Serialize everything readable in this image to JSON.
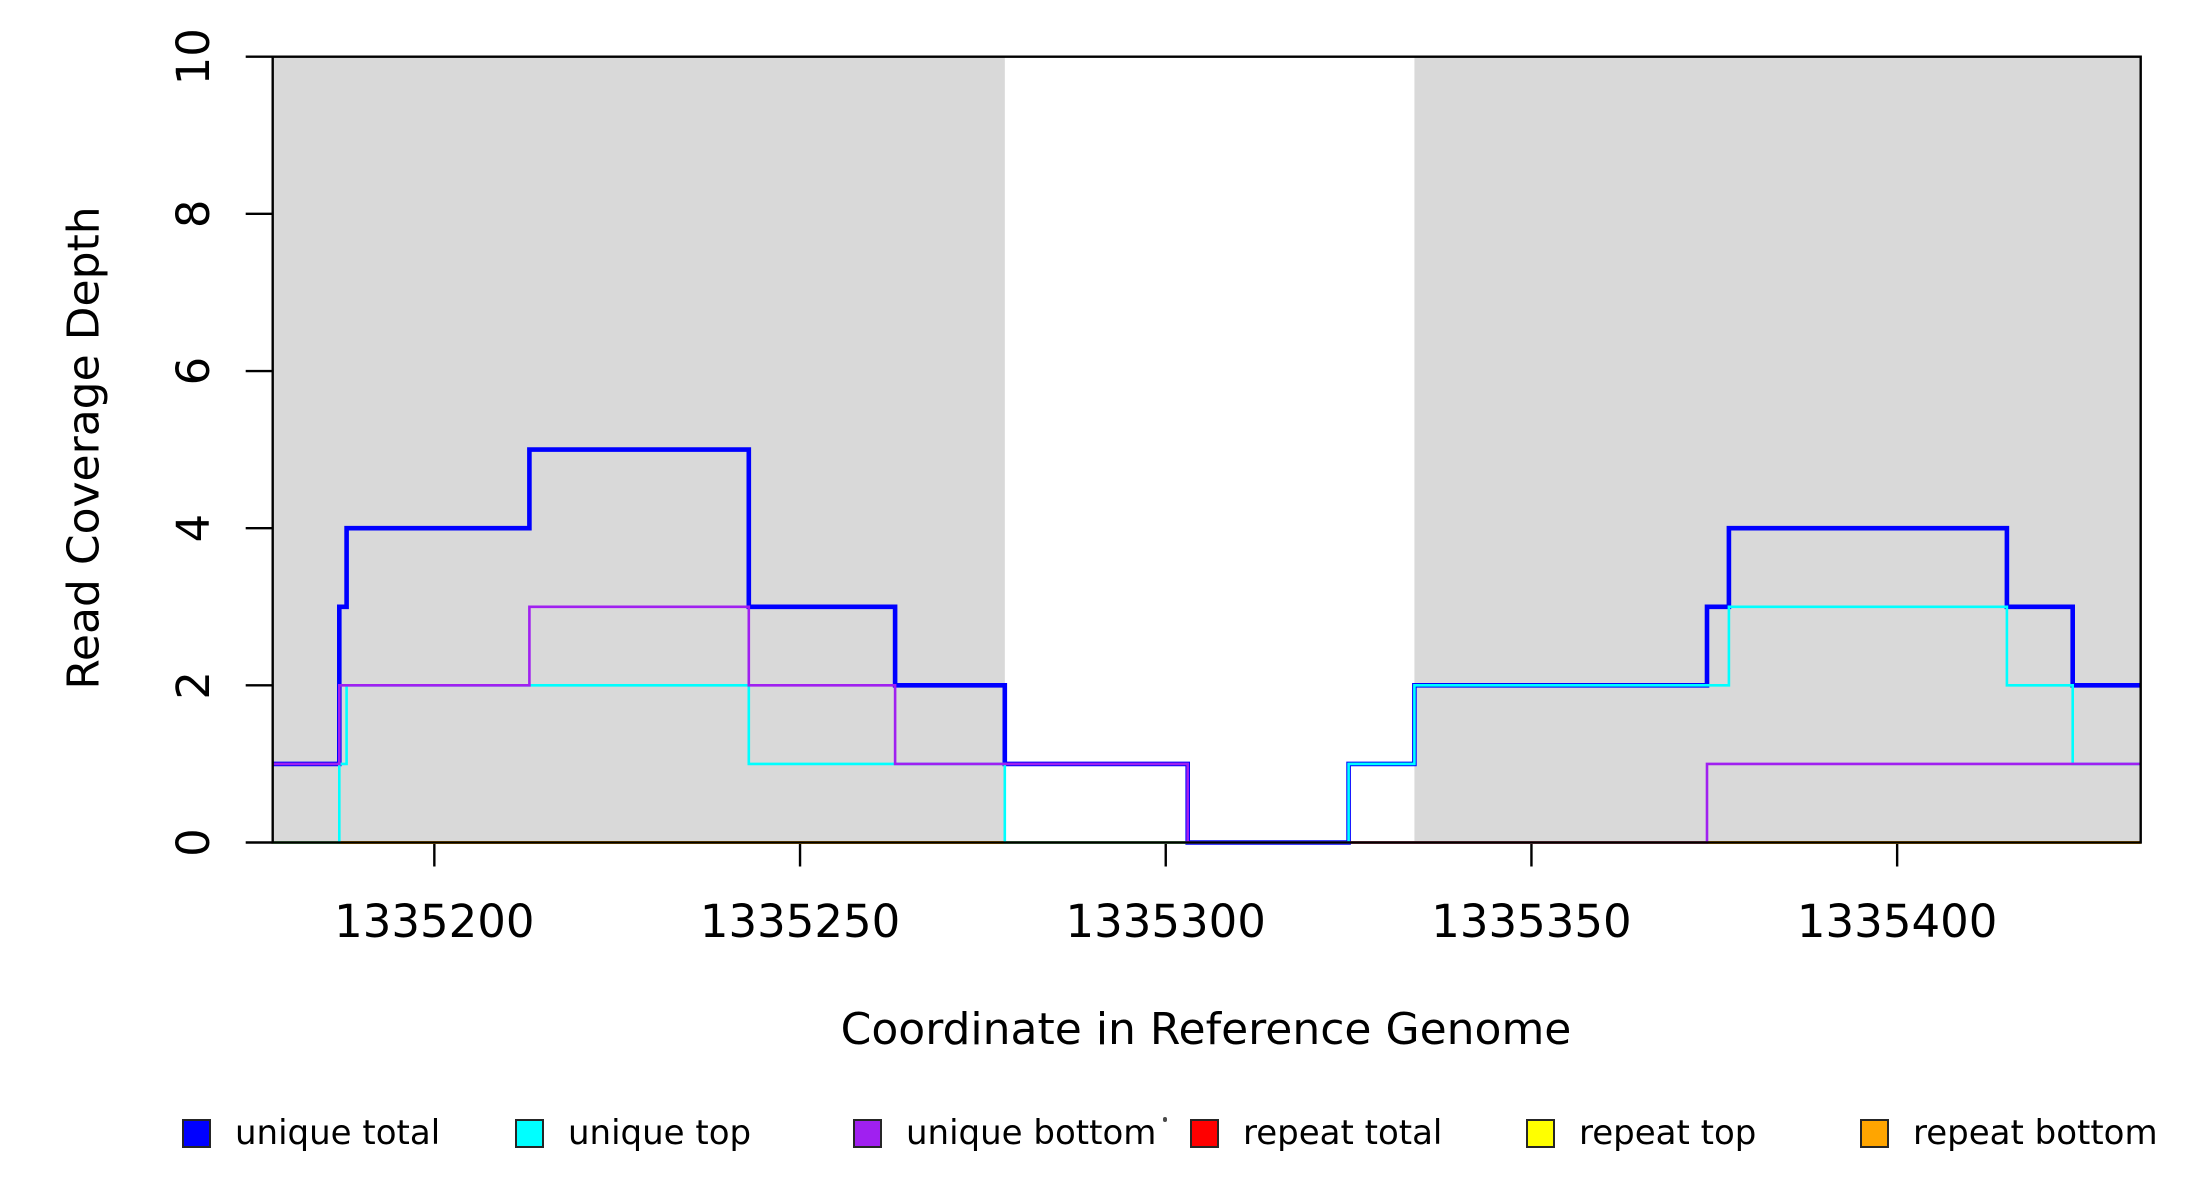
{
  "figure": {
    "background": "#ffffff",
    "xlabel": "Coordinate in Reference Genome",
    "ylabel": "Read Coverage Depth"
  },
  "chart_data": {
    "type": "line",
    "step_mode": "post",
    "title": "",
    "xlabel": "Coordinate in Reference Genome",
    "ylabel": "Read Coverage Depth",
    "xlim": [
      1335177.9,
      1335433.3
    ],
    "ylim": [
      0,
      10
    ],
    "xticks": [
      1335200,
      1335250,
      1335300,
      1335350,
      1335400
    ],
    "yticks": [
      0,
      2,
      4,
      6,
      8,
      10
    ],
    "grid": false,
    "box": true,
    "background_shading": {
      "color": "#D9D9D9",
      "regions": [
        [
          1335177.9,
          1335278
        ],
        [
          1335334,
          1335433.3
        ]
      ]
    },
    "series": [
      {
        "name": "repeat total",
        "color": "#FF0000",
        "line_width": 2.4,
        "step_points": [
          [
            1335177.9,
            0
          ]
        ]
      },
      {
        "name": "repeat top",
        "color": "#FFFF00",
        "line_width": 2.4,
        "step_points": [
          [
            1335177.9,
            0
          ]
        ]
      },
      {
        "name": "repeat bottom",
        "color": "#FFA500",
        "line_width": 3.0,
        "step_points": [
          [
            1335177.9,
            0
          ]
        ]
      },
      {
        "name": "unique total",
        "color": "#0000FF",
        "line_width": 4.6,
        "step_points": [
          [
            1335177.9,
            1
          ],
          [
            1335187,
            3
          ],
          [
            1335188,
            4
          ],
          [
            1335213,
            5
          ],
          [
            1335243,
            3
          ],
          [
            1335263,
            2
          ],
          [
            1335278,
            1
          ],
          [
            1335303,
            0
          ],
          [
            1335325,
            1
          ],
          [
            1335334,
            2
          ],
          [
            1335374,
            3
          ],
          [
            1335377,
            4
          ],
          [
            1335415,
            3
          ],
          [
            1335424,
            2
          ]
        ]
      },
      {
        "name": "unique top",
        "color": "#00FFFF",
        "line_width": 2.6,
        "step_points": [
          [
            1335177.9,
            0
          ],
          [
            1335187,
            1
          ],
          [
            1335188,
            2
          ],
          [
            1335243,
            1
          ],
          [
            1335278,
            0
          ],
          [
            1335325,
            1
          ],
          [
            1335334,
            2
          ],
          [
            1335377,
            3
          ],
          [
            1335415,
            2
          ],
          [
            1335424,
            1
          ]
        ]
      },
      {
        "name": "unique bottom",
        "color": "#A020F0",
        "line_width": 2.6,
        "step_points": [
          [
            1335177.9,
            1
          ],
          [
            1335187,
            2
          ],
          [
            1335213,
            3
          ],
          [
            1335243,
            2
          ],
          [
            1335263,
            1
          ],
          [
            1335303,
            0
          ],
          [
            1335374,
            1
          ]
        ]
      }
    ],
    "legend": {
      "position": "bottom",
      "entries": [
        {
          "label": "unique total",
          "color": "#0000FF"
        },
        {
          "label": "unique top",
          "color": "#00FFFF"
        },
        {
          "label": "unique bottom",
          "color": "#A020F0"
        },
        {
          "label": "repeat total",
          "color": "#FF0000"
        },
        {
          "label": "repeat top",
          "color": "#FFFF00"
        },
        {
          "label": "repeat bottom",
          "color": "#FFA500"
        }
      ]
    }
  }
}
